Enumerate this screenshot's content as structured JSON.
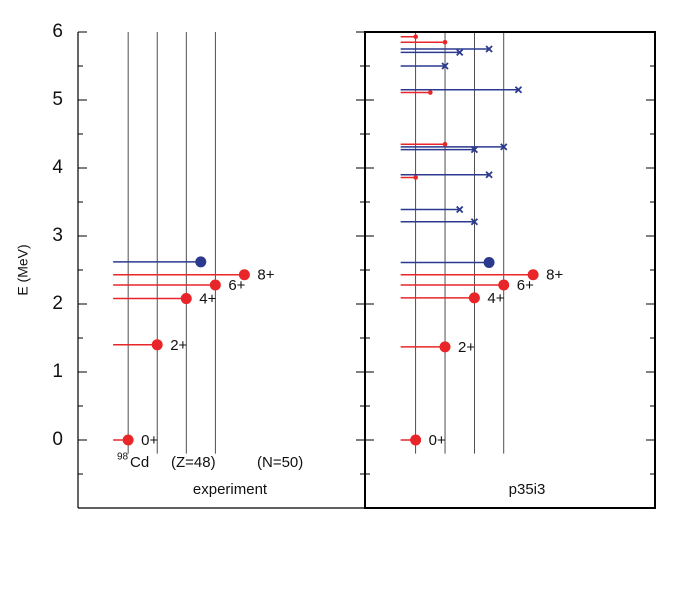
{
  "chart_data": {
    "type": "level-scheme",
    "y_label": "E (MeV)",
    "ylim": [
      -1,
      6
    ],
    "yticks": [
      0,
      1,
      2,
      3,
      4,
      5,
      6
    ],
    "minor_yticks": [
      -0.5,
      0.5,
      1.5,
      2.5,
      3.5,
      4.5,
      5.5
    ],
    "xlim": [
      -3.45,
      16.3
    ],
    "spin_lines": [
      0,
      2,
      4,
      6
    ],
    "colors": {
      "red": "#e8262a",
      "blue": "#2b3a8f"
    },
    "panels": [
      {
        "caption": "experiment",
        "nucleus": {
          "mass": "98",
          "symbol": "Cd",
          "z": "(Z=48)",
          "n": "(N=50)"
        },
        "levels": [
          {
            "energy": 0,
            "spin": 0,
            "color": "red",
            "marker": "dot",
            "label": "0+"
          },
          {
            "energy": 1.4,
            "spin": 2,
            "color": "red",
            "marker": "dot",
            "label": "2+"
          },
          {
            "energy": 2.08,
            "spin": 4,
            "color": "red",
            "marker": "dot",
            "label": "4+"
          },
          {
            "energy": 2.28,
            "spin": 6,
            "color": "red",
            "marker": "dot",
            "label": "6+"
          },
          {
            "energy": 2.43,
            "spin": 8,
            "color": "red",
            "marker": "dot",
            "label": "8+"
          },
          {
            "energy": 2.62,
            "spin": 5,
            "color": "blue",
            "marker": "dot"
          }
        ]
      },
      {
        "caption": "p35i3",
        "levels": [
          {
            "energy": 0,
            "spin": 0,
            "color": "red",
            "marker": "dot",
            "label": "0+"
          },
          {
            "energy": 1.37,
            "spin": 2,
            "color": "red",
            "marker": "dot",
            "label": "2+"
          },
          {
            "energy": 2.09,
            "spin": 4,
            "color": "red",
            "marker": "dot",
            "label": "4+"
          },
          {
            "energy": 2.28,
            "spin": 6,
            "color": "red",
            "marker": "dot",
            "label": "6+"
          },
          {
            "energy": 2.43,
            "spin": 8,
            "color": "red",
            "marker": "dot",
            "label": "8+"
          },
          {
            "energy": 2.61,
            "spin": 5,
            "color": "blue",
            "marker": "dot"
          },
          {
            "energy": 3.21,
            "spin": 4,
            "color": "blue",
            "marker": "cross"
          },
          {
            "energy": 3.39,
            "spin": 3,
            "color": "blue",
            "marker": "cross"
          },
          {
            "energy": 3.86,
            "spin": 0,
            "color": "red",
            "marker": "small"
          },
          {
            "energy": 3.9,
            "spin": 5,
            "color": "blue",
            "marker": "cross"
          },
          {
            "energy": 4.27,
            "spin": 4,
            "color": "blue",
            "marker": "cross"
          },
          {
            "energy": 4.31,
            "spin": 6,
            "color": "blue",
            "marker": "cross"
          },
          {
            "energy": 4.35,
            "spin": 2,
            "color": "red",
            "marker": "small"
          },
          {
            "energy": 5.11,
            "spin": 1,
            "color": "red",
            "marker": "small"
          },
          {
            "energy": 5.15,
            "spin": 7,
            "color": "blue",
            "marker": "cross"
          },
          {
            "energy": 5.5,
            "spin": 2,
            "color": "blue",
            "marker": "cross"
          },
          {
            "energy": 5.7,
            "spin": 3,
            "color": "blue",
            "marker": "cross"
          },
          {
            "energy": 5.75,
            "spin": 5,
            "color": "blue",
            "marker": "cross"
          },
          {
            "energy": 5.85,
            "spin": 2,
            "color": "red",
            "marker": "small"
          },
          {
            "energy": 5.93,
            "spin": 0,
            "color": "red",
            "marker": "small"
          }
        ]
      }
    ]
  }
}
